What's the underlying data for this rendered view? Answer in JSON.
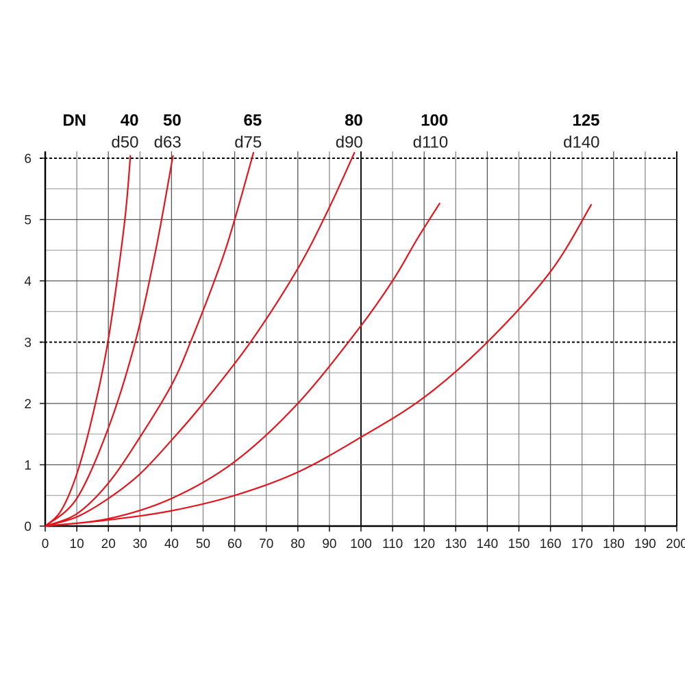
{
  "chart_data": {
    "type": "line",
    "header_label": "DN",
    "xlim": [
      0,
      200
    ],
    "ylim": [
      0,
      6
    ],
    "xticks": [
      0,
      10,
      20,
      30,
      40,
      50,
      60,
      70,
      80,
      90,
      100,
      110,
      120,
      130,
      140,
      150,
      160,
      170,
      180,
      190,
      200
    ],
    "yticks": [
      0,
      1,
      2,
      3,
      4,
      5,
      6
    ],
    "grid": true,
    "dashed_gridlines": [
      3,
      6
    ],
    "series": [
      {
        "name": "d50",
        "dn": "40",
        "color": "#e3141b",
        "x": [
          0,
          5,
          10,
          15,
          20,
          25,
          27
        ],
        "values": [
          0,
          0.25,
          0.85,
          1.8,
          3.05,
          4.9,
          6.05
        ]
      },
      {
        "name": "d63",
        "dn": "50",
        "color": "#e3141b",
        "x": [
          0,
          10,
          20,
          28.5,
          35,
          40.5
        ],
        "values": [
          0,
          0.45,
          1.6,
          3,
          4.5,
          6.05
        ]
      },
      {
        "name": "d75",
        "dn": "65",
        "color": "#e3141b",
        "x": [
          0,
          10,
          20,
          30,
          40,
          46,
          55,
          60,
          66
        ],
        "values": [
          0,
          0.2,
          0.7,
          1.45,
          2.3,
          3,
          4.2,
          5,
          6.1
        ]
      },
      {
        "name": "d90",
        "dn": "80",
        "color": "#e3141b",
        "x": [
          0,
          10,
          20,
          30,
          40,
          50,
          65,
          80,
          90,
          98
        ],
        "values": [
          0,
          0.15,
          0.45,
          0.85,
          1.4,
          2,
          3,
          4.2,
          5.2,
          6.1
        ]
      },
      {
        "name": "d110",
        "dn": "100",
        "color": "#e3141b",
        "x": [
          0,
          20,
          40,
          60,
          80,
          99,
          110,
          118,
          125
        ],
        "values": [
          0,
          0.12,
          0.45,
          1.05,
          2,
          3.2,
          4,
          4.7,
          5.27
        ]
      },
      {
        "name": "d140",
        "dn": "125",
        "color": "#e3141b",
        "x": [
          0,
          20,
          40,
          60,
          80,
          100,
          120,
          140,
          160,
          173
        ],
        "values": [
          0,
          0.1,
          0.25,
          0.5,
          0.88,
          1.45,
          2.1,
          3,
          4.15,
          5.25
        ]
      }
    ]
  }
}
